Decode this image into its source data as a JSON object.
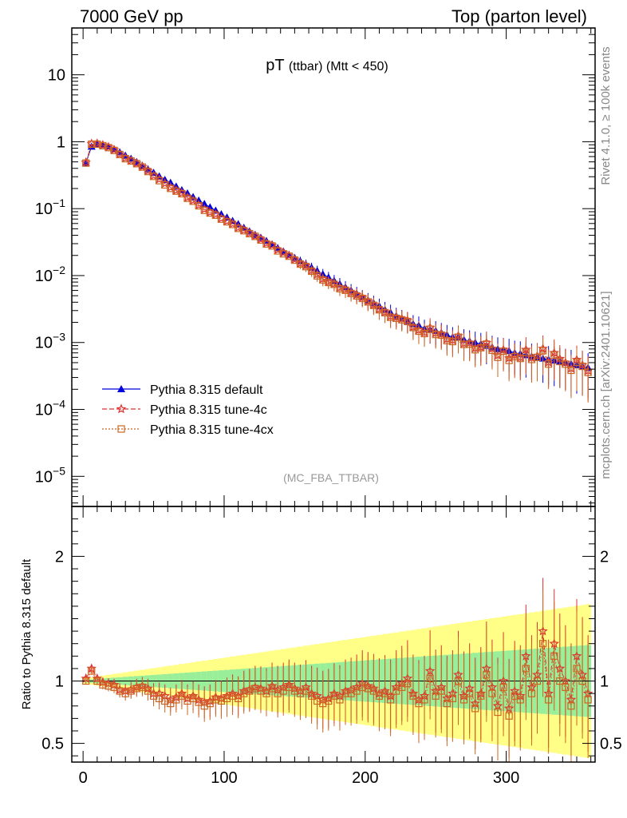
{
  "header": {
    "left": "7000 GeV pp",
    "right": "Top (parton level)"
  },
  "side_labels": {
    "top": "Rivet 4.1.0, ≥ 100k events",
    "bottom": "mcplots.cern.ch [arXiv:2401.10621]"
  },
  "chart_data": {
    "type": "line",
    "title_main": "pT",
    "title_sub": "(ttbar) (Mtt < 450)",
    "watermark": "(MC_FBA_TTBAR)",
    "xlabel": "",
    "ylabel_top": "",
    "ylabel_ratio": "Ratio to Pythia 8.315 default",
    "xlim": [
      -8,
      363
    ],
    "ylim_top_log10": [
      -5.45,
      1.7
    ],
    "ylim_ratio": [
      0.35,
      2.4
    ],
    "x_ticks": [
      {
        "v": 0,
        "label": "0"
      },
      {
        "v": 100,
        "label": "100"
      },
      {
        "v": 200,
        "label": "200"
      },
      {
        "v": 300,
        "label": "300"
      }
    ],
    "y_ticks_top": [
      {
        "exp": 1,
        "label": "10"
      },
      {
        "exp": 0,
        "label": "1"
      },
      {
        "exp": -1,
        "label": "10",
        "sup": "−1"
      },
      {
        "exp": -2,
        "label": "10",
        "sup": "−2"
      },
      {
        "exp": -3,
        "label": "10",
        "sup": "−3"
      },
      {
        "exp": -4,
        "label": "10",
        "sup": "−4"
      },
      {
        "exp": -5,
        "label": "10",
        "sup": "−5"
      }
    ],
    "y_ticks_ratio": [
      {
        "v": 0.5,
        "label": "0.5"
      },
      {
        "v": 1,
        "label": "1"
      },
      {
        "v": 2,
        "label": "2"
      }
    ],
    "legend": [
      {
        "name": "Pythia 8.315 default",
        "color": "#0000dd",
        "style": "solid",
        "marker": "triangle"
      },
      {
        "name": "Pythia 8.315 tune-4c",
        "color": "#dd3333",
        "style": "dashed",
        "marker": "star"
      },
      {
        "name": "Pythia 8.315 tune-4cx",
        "color": "#cc6622",
        "style": "dotted",
        "marker": "square"
      }
    ],
    "band_colors": {
      "outer": "#ffff88",
      "inner": "#99ee99"
    },
    "series": [
      {
        "name": "Pythia 8.315 default",
        "x": [
          2,
          6,
          10,
          14,
          18,
          22,
          26,
          30,
          34,
          38,
          42,
          46,
          50,
          54,
          58,
          62,
          66,
          70,
          74,
          78,
          82,
          86,
          90,
          94,
          98,
          102,
          106,
          110,
          114,
          118,
          122,
          126,
          130,
          134,
          138,
          142,
          146,
          150,
          154,
          158,
          162,
          166,
          170,
          174,
          178,
          182,
          186,
          190,
          194,
          198,
          202,
          206,
          210,
          214,
          218,
          222,
          226,
          230,
          234,
          238,
          242,
          246,
          250,
          254,
          258,
          262,
          266,
          270,
          274,
          278,
          282,
          286,
          290,
          294,
          298,
          302,
          306,
          310,
          314,
          318,
          322,
          326,
          330,
          334,
          338,
          342,
          346,
          350,
          354,
          358
        ],
        "y": [
          0.48,
          0.85,
          0.92,
          0.9,
          0.85,
          0.78,
          0.7,
          0.62,
          0.56,
          0.5,
          0.44,
          0.39,
          0.345,
          0.305,
          0.27,
          0.245,
          0.215,
          0.19,
          0.17,
          0.15,
          0.133,
          0.118,
          0.105,
          0.094,
          0.083,
          0.074,
          0.066,
          0.059,
          0.052,
          0.046,
          0.041,
          0.037,
          0.033,
          0.0295,
          0.026,
          0.023,
          0.0205,
          0.0185,
          0.0165,
          0.0148,
          0.0132,
          0.0118,
          0.0105,
          0.0094,
          0.0084,
          0.0075,
          0.0067,
          0.006,
          0.0054,
          0.0048,
          0.0043,
          0.0039,
          0.0035,
          0.0031,
          0.0028,
          0.0025,
          0.0023,
          0.0021,
          0.0019,
          0.0018,
          0.0016,
          0.00155,
          0.0015,
          0.0014,
          0.0013,
          0.0012,
          0.0012,
          0.0011,
          0.00105,
          0.001,
          0.00095,
          0.0009,
          0.00085,
          0.0008,
          0.00078,
          0.00075,
          0.0007,
          0.00068,
          0.00065,
          0.00062,
          0.0006,
          0.00058,
          0.00056,
          0.00054,
          0.00052,
          0.0005,
          0.00048,
          0.00046,
          0.00044,
          0.00042
        ],
        "ratio": [
          1,
          1,
          1,
          1,
          1,
          1,
          1,
          1,
          1,
          1,
          1,
          1,
          1,
          1,
          1,
          1,
          1,
          1,
          1,
          1,
          1,
          1,
          1,
          1,
          1,
          1,
          1,
          1,
          1,
          1,
          1,
          1,
          1,
          1,
          1,
          1,
          1,
          1,
          1,
          1,
          1,
          1,
          1,
          1,
          1,
          1,
          1,
          1,
          1,
          1,
          1,
          1,
          1,
          1,
          1,
          1,
          1,
          1,
          1,
          1,
          1,
          1,
          1,
          1,
          1,
          1,
          1,
          1,
          1,
          1,
          1,
          1,
          1,
          1,
          1,
          1,
          1,
          1,
          1,
          1,
          1,
          1,
          1,
          1,
          1,
          1,
          1,
          1,
          1,
          1
        ]
      },
      {
        "name": "Pythia 8.315 tune-4c",
        "x": [
          2,
          6,
          10,
          14,
          18,
          22,
          26,
          30,
          34,
          38,
          42,
          46,
          50,
          54,
          58,
          62,
          66,
          70,
          74,
          78,
          82,
          86,
          90,
          94,
          98,
          102,
          106,
          110,
          114,
          118,
          122,
          126,
          130,
          134,
          138,
          142,
          146,
          150,
          154,
          158,
          162,
          166,
          170,
          174,
          178,
          182,
          186,
          190,
          194,
          198,
          202,
          206,
          210,
          214,
          218,
          222,
          226,
          230,
          234,
          238,
          242,
          246,
          250,
          254,
          258,
          262,
          266,
          270,
          274,
          278,
          282,
          286,
          290,
          294,
          298,
          302,
          306,
          310,
          314,
          318,
          322,
          326,
          330,
          334,
          338,
          342,
          346,
          350,
          354,
          358
        ],
        "ratio": [
          1.02,
          1.1,
          1.02,
          0.99,
          0.98,
          0.97,
          0.93,
          0.92,
          0.93,
          0.95,
          0.96,
          0.94,
          0.9,
          0.9,
          0.88,
          0.85,
          0.87,
          0.9,
          0.86,
          0.88,
          0.85,
          0.83,
          0.84,
          0.87,
          0.86,
          0.88,
          0.9,
          0.88,
          0.92,
          0.93,
          0.95,
          0.94,
          0.92,
          0.96,
          0.93,
          0.95,
          0.97,
          0.94,
          0.92,
          0.95,
          0.9,
          0.88,
          0.85,
          0.86,
          0.9,
          0.88,
          0.92,
          0.93,
          0.95,
          0.98,
          0.96,
          0.94,
          0.9,
          0.92,
          0.88,
          0.95,
          0.98,
          1.02,
          0.9,
          0.85,
          0.88,
          1.08,
          0.92,
          0.95,
          0.86,
          0.9,
          1.05,
          0.88,
          0.94,
          0.82,
          0.9,
          1.1,
          0.95,
          0.8,
          1.0,
          0.78,
          0.92,
          0.88,
          1.2,
          0.95,
          1.05,
          1.4,
          0.9,
          1.3,
          1.1,
          1.0,
          0.85,
          1.2,
          1.05,
          0.9
        ]
      },
      {
        "name": "Pythia 8.315 tune-4cx",
        "x": [
          2,
          6,
          10,
          14,
          18,
          22,
          26,
          30,
          34,
          38,
          42,
          46,
          50,
          54,
          58,
          62,
          66,
          70,
          74,
          78,
          82,
          86,
          90,
          94,
          98,
          102,
          106,
          110,
          114,
          118,
          122,
          126,
          130,
          134,
          138,
          142,
          146,
          150,
          154,
          158,
          162,
          166,
          170,
          174,
          178,
          182,
          186,
          190,
          194,
          198,
          202,
          206,
          210,
          214,
          218,
          222,
          226,
          230,
          234,
          238,
          242,
          246,
          250,
          254,
          258,
          262,
          266,
          270,
          274,
          278,
          282,
          286,
          290,
          294,
          298,
          302,
          306,
          310,
          314,
          318,
          322,
          326,
          330,
          334,
          338,
          342,
          346,
          350,
          354,
          358
        ],
        "ratio": [
          1.0,
          1.08,
          1.0,
          0.97,
          0.96,
          0.95,
          0.92,
          0.9,
          0.92,
          0.94,
          0.95,
          0.92,
          0.88,
          0.86,
          0.84,
          0.82,
          0.85,
          0.88,
          0.84,
          0.86,
          0.83,
          0.8,
          0.82,
          0.85,
          0.84,
          0.86,
          0.88,
          0.86,
          0.9,
          0.92,
          0.94,
          0.92,
          0.9,
          0.94,
          0.9,
          0.92,
          0.95,
          0.92,
          0.9,
          0.92,
          0.88,
          0.84,
          0.82,
          0.84,
          0.88,
          0.85,
          0.9,
          0.9,
          0.92,
          0.95,
          0.94,
          0.92,
          0.88,
          0.9,
          0.85,
          0.92,
          0.95,
          0.98,
          0.88,
          0.82,
          0.85,
          1.02,
          0.88,
          0.92,
          0.82,
          0.86,
          1.0,
          0.85,
          0.9,
          0.78,
          0.88,
          1.05,
          0.9,
          0.75,
          0.95,
          0.72,
          0.88,
          0.85,
          1.1,
          0.9,
          1.0,
          1.3,
          0.85,
          1.2,
          1.0,
          0.95,
          0.8,
          1.1,
          1.0,
          0.85
        ]
      }
    ]
  }
}
